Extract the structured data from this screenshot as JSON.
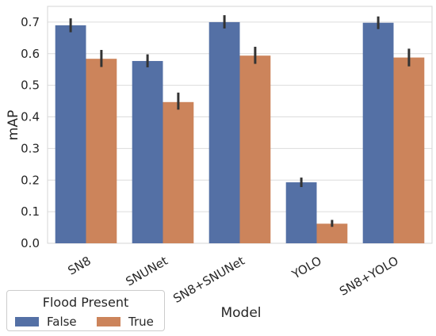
{
  "chart_data": {
    "type": "bar",
    "xlabel": "Model",
    "ylabel": "mAP",
    "ylim": [
      0,
      0.75
    ],
    "yticks": [
      "0.0",
      "0.1",
      "0.2",
      "0.3",
      "0.4",
      "0.5",
      "0.6",
      "0.7"
    ],
    "grid": true,
    "categories": [
      "SN8",
      "SNUNet",
      "SN8+SNUNet",
      "YOLO",
      "SN8+YOLO"
    ],
    "series": [
      {
        "name": "False",
        "color": "#5470a5",
        "values": [
          0.69,
          0.577,
          0.7,
          0.193,
          0.698
        ],
        "err_low": [
          0.668,
          0.557,
          0.68,
          0.178,
          0.678
        ],
        "err_high": [
          0.712,
          0.598,
          0.722,
          0.208,
          0.718
        ]
      },
      {
        "name": "True",
        "color": "#cc845b",
        "values": [
          0.584,
          0.447,
          0.594,
          0.062,
          0.588
        ],
        "err_low": [
          0.558,
          0.423,
          0.568,
          0.052,
          0.56
        ],
        "err_high": [
          0.612,
          0.477,
          0.622,
          0.074,
          0.616
        ]
      }
    ],
    "legend": {
      "title": "Flood Present",
      "placement": "bottom-left"
    }
  }
}
